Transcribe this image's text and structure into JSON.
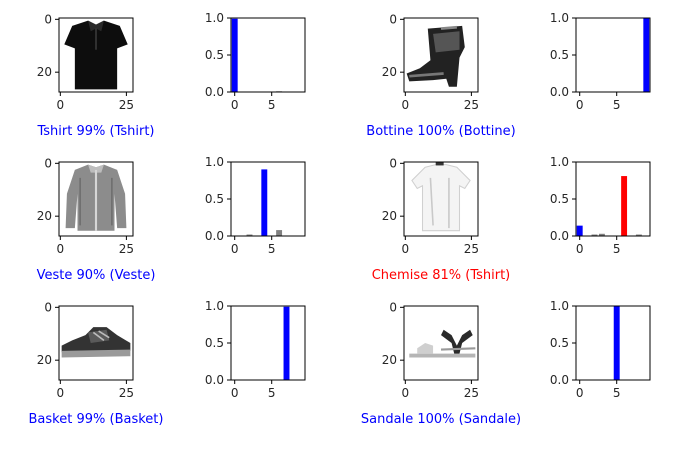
{
  "colors": {
    "correct": "#0000ff",
    "wrong": "#ff0000",
    "other": "#808080"
  },
  "axis_ticks": {
    "image_x": [
      "0",
      "25"
    ],
    "image_y": [
      "0",
      "20"
    ],
    "bar_x": [
      "0",
      "5"
    ],
    "bar_y": [
      "0.0",
      "0.5",
      "1.0"
    ]
  },
  "panels": [
    {
      "caption": "Tshirt 99% (Tshirt)",
      "status": "correct",
      "image": "black short-sleeve shirt with collar",
      "chart_data": {
        "type": "bar",
        "categories": [
          "0",
          "1",
          "2",
          "3",
          "4",
          "5",
          "6",
          "7",
          "8",
          "9"
        ],
        "values": [
          0.99,
          0,
          0,
          0,
          0,
          0,
          0.01,
          0,
          0,
          0
        ],
        "predicted": 0,
        "true_label": 0,
        "ylim": [
          0,
          1
        ],
        "xlim": [
          -0.5,
          9.5
        ],
        "grid": false
      }
    },
    {
      "caption": "Bottine 100% (Bottine)",
      "status": "correct",
      "image": "black ankle boot",
      "chart_data": {
        "type": "bar",
        "categories": [
          "0",
          "1",
          "2",
          "3",
          "4",
          "5",
          "6",
          "7",
          "8",
          "9"
        ],
        "values": [
          0,
          0,
          0,
          0,
          0,
          0,
          0,
          0,
          0,
          1.0
        ],
        "predicted": 9,
        "true_label": 9,
        "ylim": [
          0,
          1
        ],
        "xlim": [
          -0.5,
          9.5
        ],
        "grid": false
      }
    },
    {
      "caption": "Veste 90% (Veste)",
      "status": "correct",
      "image": "grey zip jacket",
      "chart_data": {
        "type": "bar",
        "categories": [
          "0",
          "1",
          "2",
          "3",
          "4",
          "5",
          "6",
          "7",
          "8",
          "9"
        ],
        "values": [
          0,
          0,
          0.02,
          0,
          0.9,
          0,
          0.08,
          0,
          0,
          0
        ],
        "predicted": 4,
        "true_label": 4,
        "ylim": [
          0,
          1
        ],
        "xlim": [
          -0.5,
          9.5
        ],
        "grid": false
      }
    },
    {
      "caption": "Chemise 81% (Tshirt)",
      "status": "wrong",
      "image": "white t-shirt",
      "chart_data": {
        "type": "bar",
        "categories": [
          "0",
          "1",
          "2",
          "3",
          "4",
          "5",
          "6",
          "7",
          "8",
          "9"
        ],
        "values": [
          0.14,
          0,
          0.02,
          0.03,
          0,
          0,
          0.81,
          0,
          0.02,
          0
        ],
        "predicted": 6,
        "true_label": 0,
        "ylim": [
          0,
          1
        ],
        "xlim": [
          -0.5,
          9.5
        ],
        "grid": false
      }
    },
    {
      "caption": "Basket 99% (Basket)",
      "status": "correct",
      "image": "dark sneaker",
      "chart_data": {
        "type": "bar",
        "categories": [
          "0",
          "1",
          "2",
          "3",
          "4",
          "5",
          "6",
          "7",
          "8",
          "9"
        ],
        "values": [
          0,
          0,
          0,
          0,
          0,
          0,
          0,
          0.99,
          0,
          0
        ],
        "predicted": 7,
        "true_label": 7,
        "ylim": [
          0,
          1
        ],
        "xlim": [
          -0.5,
          9.5
        ],
        "grid": false
      }
    },
    {
      "caption": "Sandale 100% (Sandale)",
      "status": "correct",
      "image": "strappy sandal",
      "chart_data": {
        "type": "bar",
        "categories": [
          "0",
          "1",
          "2",
          "3",
          "4",
          "5",
          "6",
          "7",
          "8",
          "9"
        ],
        "values": [
          0,
          0,
          0,
          0,
          0,
          1.0,
          0,
          0,
          0,
          0
        ],
        "predicted": 5,
        "true_label": 5,
        "ylim": [
          0,
          1
        ],
        "xlim": [
          -0.5,
          9.5
        ],
        "grid": false
      }
    }
  ]
}
